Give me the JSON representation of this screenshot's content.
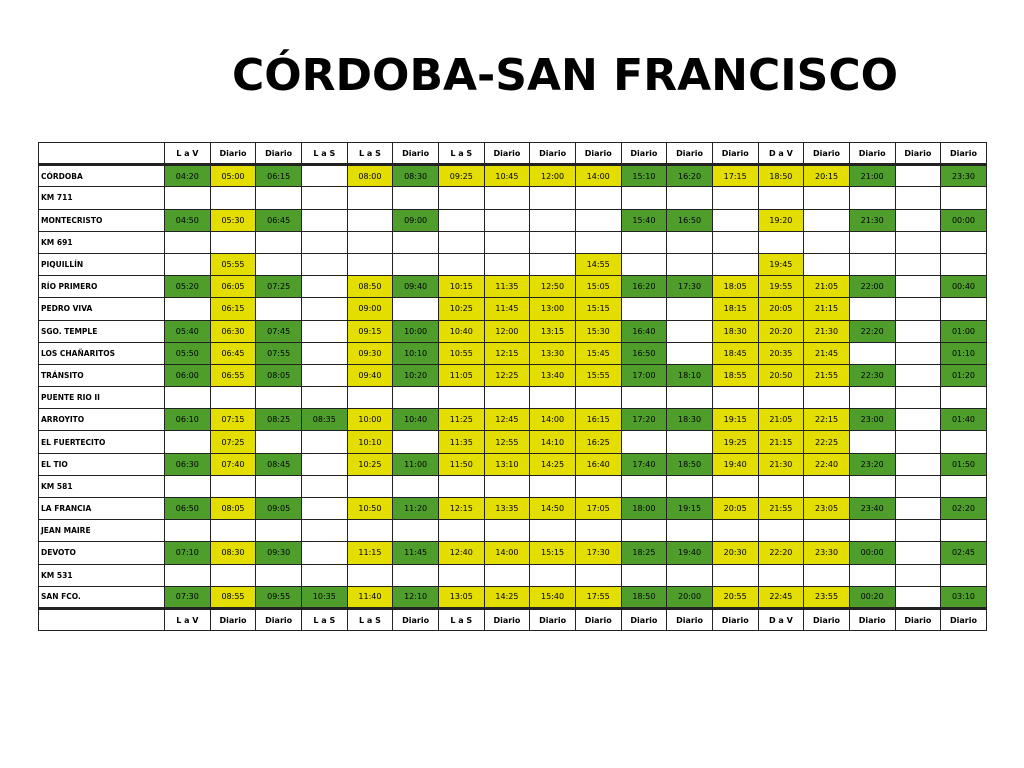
{
  "title": "CÓRDOBA-SAN FRANCISCO",
  "colors": {
    "green": "#4f9e2c",
    "yellow": "#e4dd00"
  },
  "day_types": [
    "L a V",
    "Diario",
    "Diario",
    "L a S",
    "L a S",
    "Diario",
    "L a S",
    "Diario",
    "Diario",
    "Diario",
    "Diario",
    "Diario",
    "Diario",
    "D a V",
    "Diario",
    "Diario",
    "Diario",
    "Diario"
  ],
  "rows": [
    {
      "stop": "CÓRDOBA",
      "times": [
        "04:20",
        "05:00",
        "06:15",
        "",
        "08:00",
        "08:30",
        "09:25",
        "10:45",
        "12:00",
        "14:00",
        "15:10",
        "16:20",
        "17:15",
        "18:50",
        "20:15",
        "21:00",
        "",
        "23:30"
      ],
      "colors": [
        "g",
        "y",
        "g",
        "",
        "y",
        "g",
        "y",
        "y",
        "y",
        "y",
        "g",
        "g",
        "y",
        "y",
        "y",
        "g",
        "",
        "g"
      ]
    },
    {
      "stop": "KM 711",
      "times": [
        "",
        "",
        "",
        "",
        "",
        "",
        "",
        "",
        "",
        "",
        "",
        "",
        "",
        "",
        "",
        "",
        "",
        ""
      ],
      "colors": [
        "",
        "",
        "",
        "",
        "",
        "",
        "",
        "",
        "",
        "",
        "",
        "",
        "",
        "",
        "",
        "",
        "",
        ""
      ]
    },
    {
      "stop": "MONTECRISTO",
      "times": [
        "04:50",
        "05:30",
        "06:45",
        "",
        "",
        "09:00",
        "",
        "",
        "",
        "",
        "15:40",
        "16:50",
        "",
        "19:20",
        "",
        "21:30",
        "",
        "00:00"
      ],
      "colors": [
        "g",
        "y",
        "g",
        "",
        "",
        "g",
        "",
        "",
        "",
        "",
        "g",
        "g",
        "",
        "y",
        "",
        "g",
        "",
        "g"
      ]
    },
    {
      "stop": "KM 691",
      "times": [
        "",
        "",
        "",
        "",
        "",
        "",
        "",
        "",
        "",
        "",
        "",
        "",
        "",
        "",
        "",
        "",
        "",
        ""
      ],
      "colors": [
        "",
        "",
        "",
        "",
        "",
        "",
        "",
        "",
        "",
        "",
        "",
        "",
        "",
        "",
        "",
        "",
        "",
        ""
      ]
    },
    {
      "stop": "PIQUILLÍN",
      "times": [
        "",
        "05:55",
        "",
        "",
        "",
        "",
        "",
        "",
        "",
        "14:55",
        "",
        "",
        "",
        "19:45",
        "",
        "",
        "",
        ""
      ],
      "colors": [
        "",
        "y",
        "",
        "",
        "",
        "",
        "",
        "",
        "",
        "y",
        "",
        "",
        "",
        "y",
        "",
        "",
        "",
        ""
      ]
    },
    {
      "stop": "RÍO PRIMERO",
      "times": [
        "05:20",
        "06:05",
        "07:25",
        "",
        "08:50",
        "09:40",
        "10:15",
        "11:35",
        "12:50",
        "15:05",
        "16:20",
        "17:30",
        "18:05",
        "19:55",
        "21:05",
        "22:00",
        "",
        "00:40"
      ],
      "colors": [
        "g",
        "y",
        "g",
        "",
        "y",
        "g",
        "y",
        "y",
        "y",
        "y",
        "g",
        "g",
        "y",
        "y",
        "y",
        "g",
        "",
        "g"
      ]
    },
    {
      "stop": "PEDRO VIVA",
      "times": [
        "",
        "06:15",
        "",
        "",
        "09:00",
        "",
        "10:25",
        "11:45",
        "13:00",
        "15:15",
        "",
        "",
        "18:15",
        "20:05",
        "21:15",
        "",
        "",
        ""
      ],
      "colors": [
        "",
        "y",
        "",
        "",
        "y",
        "",
        "y",
        "y",
        "y",
        "y",
        "",
        "",
        "y",
        "y",
        "y",
        "",
        "",
        ""
      ]
    },
    {
      "stop": "SGO. TEMPLE",
      "times": [
        "05:40",
        "06:30",
        "07:45",
        "",
        "09:15",
        "10:00",
        "10:40",
        "12:00",
        "13:15",
        "15:30",
        "16:40",
        "",
        "18:30",
        "20:20",
        "21:30",
        "22:20",
        "",
        "01:00"
      ],
      "colors": [
        "g",
        "y",
        "g",
        "",
        "y",
        "g",
        "y",
        "y",
        "y",
        "y",
        "g",
        "",
        "y",
        "y",
        "y",
        "g",
        "",
        "g"
      ]
    },
    {
      "stop": "LOS CHAÑARITOS",
      "times": [
        "05:50",
        "06:45",
        "07:55",
        "",
        "09:30",
        "10:10",
        "10:55",
        "12:15",
        "13:30",
        "15:45",
        "16:50",
        "",
        "18:45",
        "20:35",
        "21:45",
        "",
        "",
        "01:10"
      ],
      "colors": [
        "g",
        "y",
        "g",
        "",
        "y",
        "g",
        "y",
        "y",
        "y",
        "y",
        "g",
        "",
        "y",
        "y",
        "y",
        "",
        "",
        "g"
      ]
    },
    {
      "stop": "TRÁNSITO",
      "times": [
        "06:00",
        "06:55",
        "08:05",
        "",
        "09:40",
        "10:20",
        "11:05",
        "12:25",
        "13:40",
        "15:55",
        "17:00",
        "18:10",
        "18:55",
        "20:50",
        "21:55",
        "22:30",
        "",
        "01:20"
      ],
      "colors": [
        "g",
        "y",
        "g",
        "",
        "y",
        "g",
        "y",
        "y",
        "y",
        "y",
        "g",
        "g",
        "y",
        "y",
        "y",
        "g",
        "",
        "g"
      ]
    },
    {
      "stop": "PUENTE RIO II",
      "times": [
        "",
        "",
        "",
        "",
        "",
        "",
        "",
        "",
        "",
        "",
        "",
        "",
        "",
        "",
        "",
        "",
        "",
        ""
      ],
      "colors": [
        "",
        "",
        "",
        "",
        "",
        "",
        "",
        "",
        "",
        "",
        "",
        "",
        "",
        "",
        "",
        "",
        "",
        ""
      ]
    },
    {
      "stop": "ARROYITO",
      "times": [
        "06:10",
        "07:15",
        "08:25",
        "08:35",
        "10:00",
        "10:40",
        "11:25",
        "12:45",
        "14:00",
        "16:15",
        "17:20",
        "18:30",
        "19:15",
        "21:05",
        "22:15",
        "23:00",
        "",
        "01:40"
      ],
      "colors": [
        "g",
        "y",
        "g",
        "g",
        "y",
        "g",
        "y",
        "y",
        "y",
        "y",
        "g",
        "g",
        "y",
        "y",
        "y",
        "g",
        "",
        "g"
      ]
    },
    {
      "stop": "EL FUERTECITO",
      "times": [
        "",
        "07:25",
        "",
        "",
        "10:10",
        "",
        "11:35",
        "12:55",
        "14:10",
        "16:25",
        "",
        "",
        "19:25",
        "21:15",
        "22:25",
        "",
        "",
        ""
      ],
      "colors": [
        "",
        "y",
        "",
        "",
        "y",
        "",
        "y",
        "y",
        "y",
        "y",
        "",
        "",
        "y",
        "y",
        "y",
        "",
        "",
        ""
      ]
    },
    {
      "stop": "EL TIO",
      "times": [
        "06:30",
        "07:40",
        "08:45",
        "",
        "10:25",
        "11:00",
        "11:50",
        "13:10",
        "14:25",
        "16:40",
        "17:40",
        "18:50",
        "19:40",
        "21:30",
        "22:40",
        "23:20",
        "",
        "01:50"
      ],
      "colors": [
        "g",
        "y",
        "g",
        "",
        "y",
        "g",
        "y",
        "y",
        "y",
        "y",
        "g",
        "g",
        "y",
        "y",
        "y",
        "g",
        "",
        "g"
      ]
    },
    {
      "stop": "KM 581",
      "times": [
        "",
        "",
        "",
        "",
        "",
        "",
        "",
        "",
        "",
        "",
        "",
        "",
        "",
        "",
        "",
        "",
        "",
        ""
      ],
      "colors": [
        "",
        "",
        "",
        "",
        "",
        "",
        "",
        "",
        "",
        "",
        "",
        "",
        "",
        "",
        "",
        "",
        "",
        ""
      ]
    },
    {
      "stop": "LA FRANCIA",
      "times": [
        "06:50",
        "08:05",
        "09:05",
        "",
        "10:50",
        "11:20",
        "12:15",
        "13:35",
        "14:50",
        "17:05",
        "18:00",
        "19:15",
        "20:05",
        "21:55",
        "23:05",
        "23:40",
        "",
        "02:20"
      ],
      "colors": [
        "g",
        "y",
        "g",
        "",
        "y",
        "g",
        "y",
        "y",
        "y",
        "y",
        "g",
        "g",
        "y",
        "y",
        "y",
        "g",
        "",
        "g"
      ]
    },
    {
      "stop": "JEAN MAIRE",
      "times": [
        "",
        "",
        "",
        "",
        "",
        "",
        "",
        "",
        "",
        "",
        "",
        "",
        "",
        "",
        "",
        "",
        "",
        ""
      ],
      "colors": [
        "",
        "",
        "",
        "",
        "",
        "",
        "",
        "",
        "",
        "",
        "",
        "",
        "",
        "",
        "",
        "",
        "",
        ""
      ]
    },
    {
      "stop": "DEVOTO",
      "times": [
        "07:10",
        "08:30",
        "09:30",
        "",
        "11:15",
        "11:45",
        "12:40",
        "14:00",
        "15:15",
        "17:30",
        "18:25",
        "19:40",
        "20:30",
        "22:20",
        "23:30",
        "00:00",
        "",
        "02:45"
      ],
      "colors": [
        "g",
        "y",
        "g",
        "",
        "y",
        "g",
        "y",
        "y",
        "y",
        "y",
        "g",
        "g",
        "y",
        "y",
        "y",
        "g",
        "",
        "g"
      ]
    },
    {
      "stop": "KM 531",
      "times": [
        "",
        "",
        "",
        "",
        "",
        "",
        "",
        "",
        "",
        "",
        "",
        "",
        "",
        "",
        "",
        "",
        "",
        ""
      ],
      "colors": [
        "",
        "",
        "",
        "",
        "",
        "",
        "",
        "",
        "",
        "",
        "",
        "",
        "",
        "",
        "",
        "",
        "",
        ""
      ]
    },
    {
      "stop": "SAN FCO.",
      "times": [
        "07:30",
        "08:55",
        "09:55",
        "10:35",
        "11:40",
        "12:10",
        "13:05",
        "14:25",
        "15:40",
        "17:55",
        "18:50",
        "20:00",
        "20:55",
        "22:45",
        "23:55",
        "00:20",
        "",
        "03:10"
      ],
      "colors": [
        "g",
        "y",
        "g",
        "g",
        "y",
        "g",
        "y",
        "y",
        "y",
        "y",
        "g",
        "g",
        "y",
        "y",
        "y",
        "g",
        "",
        "g"
      ]
    }
  ]
}
